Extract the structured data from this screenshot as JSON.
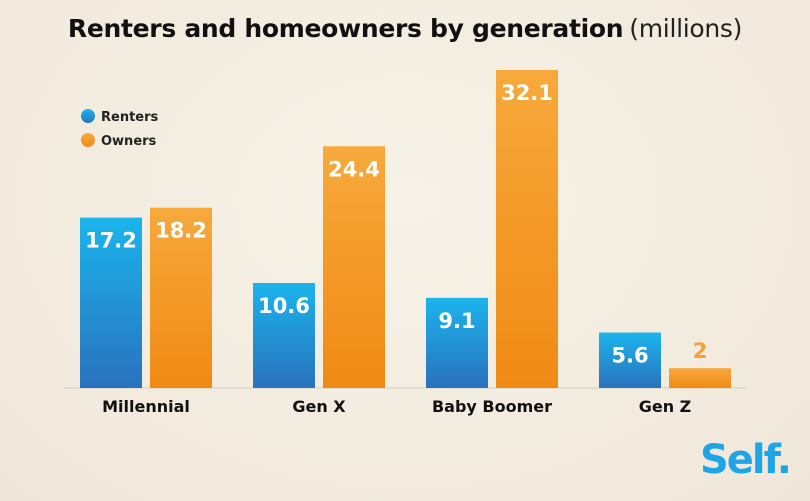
{
  "title": {
    "main": "Renters and homeowners by generation",
    "sub": "(millions)"
  },
  "chart_data": {
    "type": "bar",
    "categories": [
      "Millennial",
      "Gen X",
      "Baby Boomer",
      "Gen Z"
    ],
    "series": [
      {
        "name": "Renters",
        "values": [
          17.2,
          10.6,
          9.1,
          5.6
        ],
        "color": "#1c9ee2"
      },
      {
        "name": "Owners",
        "values": [
          18.2,
          24.4,
          32.1,
          2
        ],
        "color": "#f5a033"
      }
    ],
    "value_labels": {
      "Renters": [
        "17.2",
        "10.6",
        "9.1",
        "5.6"
      ],
      "Owners": [
        "18.2",
        "24.4",
        "32.1",
        "2"
      ]
    },
    "ylim": [
      0,
      32.1
    ],
    "legend": "top-left",
    "grid": false
  },
  "logo": {
    "text": "Self."
  }
}
